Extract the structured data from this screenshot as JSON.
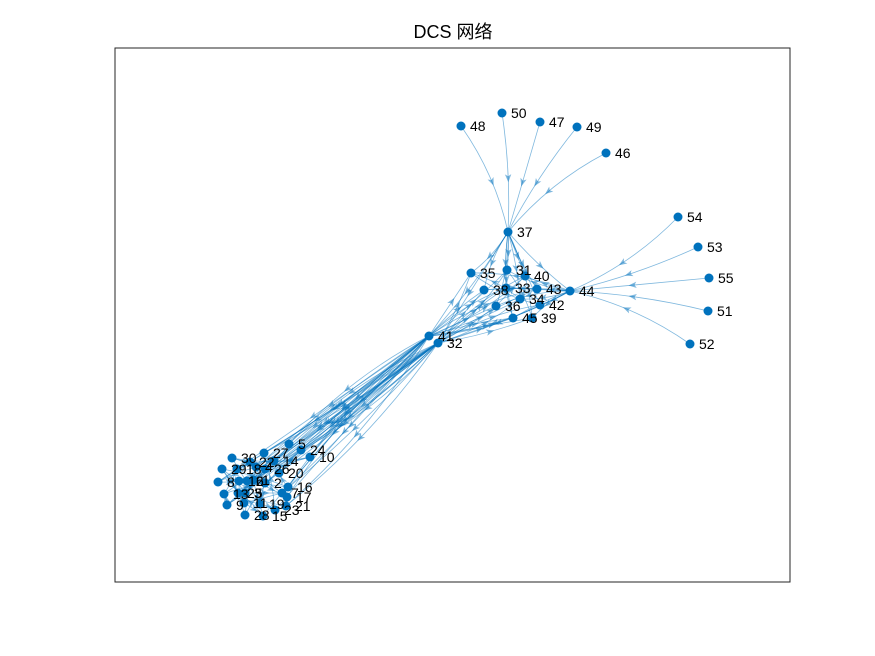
{
  "title": "DCS 网络",
  "colors": {
    "node": "#0072BD",
    "edge": "#0072BD"
  },
  "nodes": [
    {
      "id": "1"
    },
    {
      "id": "2"
    },
    {
      "id": "3"
    },
    {
      "id": "4"
    },
    {
      "id": "5"
    },
    {
      "id": "6"
    },
    {
      "id": "7"
    },
    {
      "id": "8"
    },
    {
      "id": "9"
    },
    {
      "id": "10"
    },
    {
      "id": "11"
    },
    {
      "id": "12"
    },
    {
      "id": "13"
    },
    {
      "id": "14"
    },
    {
      "id": "15"
    },
    {
      "id": "16"
    },
    {
      "id": "17"
    },
    {
      "id": "18"
    },
    {
      "id": "19"
    },
    {
      "id": "20"
    },
    {
      "id": "21"
    },
    {
      "id": "22"
    },
    {
      "id": "23"
    },
    {
      "id": "24"
    },
    {
      "id": "25"
    },
    {
      "id": "26"
    },
    {
      "id": "27"
    },
    {
      "id": "28"
    },
    {
      "id": "29"
    },
    {
      "id": "30"
    },
    {
      "id": "31"
    },
    {
      "id": "32"
    },
    {
      "id": "33"
    },
    {
      "id": "34"
    },
    {
      "id": "35"
    },
    {
      "id": "36"
    },
    {
      "id": "37"
    },
    {
      "id": "38"
    },
    {
      "id": "39"
    },
    {
      "id": "40"
    },
    {
      "id": "41"
    },
    {
      "id": "42"
    },
    {
      "id": "43"
    },
    {
      "id": "44"
    },
    {
      "id": "45"
    },
    {
      "id": "46"
    },
    {
      "id": "47"
    },
    {
      "id": "48"
    },
    {
      "id": "49"
    },
    {
      "id": "50"
    },
    {
      "id": "51"
    },
    {
      "id": "52"
    },
    {
      "id": "53"
    },
    {
      "id": "54"
    },
    {
      "id": "55"
    }
  ],
  "edges": [
    [
      "48",
      "37"
    ],
    [
      "50",
      "37"
    ],
    [
      "47",
      "37"
    ],
    [
      "49",
      "37"
    ],
    [
      "46",
      "37"
    ],
    [
      "54",
      "44"
    ],
    [
      "53",
      "44"
    ],
    [
      "55",
      "44"
    ],
    [
      "51",
      "44"
    ],
    [
      "52",
      "44"
    ],
    [
      "37",
      "35"
    ],
    [
      "37",
      "31"
    ],
    [
      "37",
      "40"
    ],
    [
      "37",
      "33"
    ],
    [
      "37",
      "38"
    ],
    [
      "37",
      "36"
    ],
    [
      "37",
      "34"
    ],
    [
      "37",
      "42"
    ],
    [
      "37",
      "43"
    ],
    [
      "37",
      "45"
    ],
    [
      "37",
      "39"
    ],
    [
      "37",
      "41"
    ],
    [
      "37",
      "32"
    ],
    [
      "37",
      "44"
    ],
    [
      "44",
      "35"
    ],
    [
      "44",
      "31"
    ],
    [
      "44",
      "40"
    ],
    [
      "44",
      "33"
    ],
    [
      "44",
      "38"
    ],
    [
      "44",
      "36"
    ],
    [
      "44",
      "34"
    ],
    [
      "44",
      "42"
    ],
    [
      "44",
      "43"
    ],
    [
      "44",
      "45"
    ],
    [
      "44",
      "39"
    ],
    [
      "44",
      "41"
    ],
    [
      "44",
      "32"
    ],
    [
      "41",
      "35"
    ],
    [
      "41",
      "31"
    ],
    [
      "41",
      "40"
    ],
    [
      "41",
      "33"
    ],
    [
      "41",
      "38"
    ],
    [
      "41",
      "36"
    ],
    [
      "41",
      "34"
    ],
    [
      "41",
      "42"
    ],
    [
      "41",
      "43"
    ],
    [
      "41",
      "45"
    ],
    [
      "41",
      "39"
    ],
    [
      "32",
      "35"
    ],
    [
      "32",
      "31"
    ],
    [
      "32",
      "40"
    ],
    [
      "32",
      "33"
    ],
    [
      "32",
      "38"
    ],
    [
      "32",
      "36"
    ],
    [
      "32",
      "34"
    ],
    [
      "32",
      "42"
    ],
    [
      "32",
      "43"
    ],
    [
      "32",
      "45"
    ],
    [
      "32",
      "39"
    ],
    [
      "35",
      "42"
    ],
    [
      "31",
      "39"
    ],
    [
      "38",
      "43"
    ],
    [
      "36",
      "40"
    ],
    [
      "33",
      "45"
    ],
    [
      "34",
      "35"
    ],
    [
      "41",
      "1"
    ],
    [
      "41",
      "2"
    ],
    [
      "41",
      "3"
    ],
    [
      "41",
      "4"
    ],
    [
      "41",
      "5"
    ],
    [
      "41",
      "6"
    ],
    [
      "41",
      "7"
    ],
    [
      "41",
      "8"
    ],
    [
      "41",
      "9"
    ],
    [
      "41",
      "10"
    ],
    [
      "41",
      "24"
    ],
    [
      "41",
      "27"
    ],
    [
      "41",
      "14"
    ],
    [
      "41",
      "20"
    ],
    [
      "41",
      "16"
    ],
    [
      "41",
      "21"
    ],
    [
      "41",
      "22"
    ],
    [
      "41",
      "23"
    ],
    [
      "41",
      "15"
    ],
    [
      "41",
      "17"
    ],
    [
      "32",
      "1"
    ],
    [
      "32",
      "2"
    ],
    [
      "32",
      "3"
    ],
    [
      "32",
      "4"
    ],
    [
      "32",
      "5"
    ],
    [
      "32",
      "6"
    ],
    [
      "32",
      "7"
    ],
    [
      "32",
      "8"
    ],
    [
      "32",
      "9"
    ],
    [
      "32",
      "10"
    ],
    [
      "32",
      "24"
    ],
    [
      "32",
      "27"
    ],
    [
      "32",
      "14"
    ],
    [
      "32",
      "20"
    ],
    [
      "32",
      "16"
    ],
    [
      "32",
      "21"
    ],
    [
      "32",
      "12"
    ],
    [
      "32",
      "13"
    ],
    [
      "32",
      "25"
    ],
    [
      "32",
      "26"
    ],
    [
      "1",
      "5"
    ],
    [
      "2",
      "6"
    ],
    [
      "3",
      "7"
    ],
    [
      "4",
      "8"
    ],
    [
      "9",
      "13"
    ],
    [
      "10",
      "14"
    ],
    [
      "11",
      "15"
    ],
    [
      "12",
      "16"
    ],
    [
      "17",
      "21"
    ],
    [
      "18",
      "22"
    ],
    [
      "19",
      "23"
    ],
    [
      "20",
      "24"
    ],
    [
      "25",
      "29"
    ],
    [
      "26",
      "30"
    ],
    [
      "27",
      "28"
    ],
    [
      "28",
      "12"
    ],
    [
      "29",
      "11"
    ],
    [
      "30",
      "19"
    ],
    [
      "13",
      "18"
    ],
    [
      "15",
      "25"
    ],
    [
      "5",
      "9"
    ],
    [
      "6",
      "10"
    ],
    [
      "7",
      "11"
    ],
    [
      "8",
      "12"
    ],
    [
      "14",
      "18"
    ],
    [
      "16",
      "20"
    ],
    [
      "21",
      "25"
    ],
    [
      "22",
      "26"
    ],
    [
      "23",
      "27"
    ],
    [
      "24",
      "28"
    ],
    [
      "29",
      "3"
    ],
    [
      "30",
      "4"
    ],
    [
      "1",
      "17"
    ],
    [
      "2",
      "19"
    ],
    [
      "9",
      "26"
    ],
    [
      "10",
      "30"
    ],
    [
      "13",
      "2"
    ],
    [
      "15",
      "1"
    ],
    [
      "16",
      "29"
    ],
    [
      "22",
      "7"
    ]
  ]
}
